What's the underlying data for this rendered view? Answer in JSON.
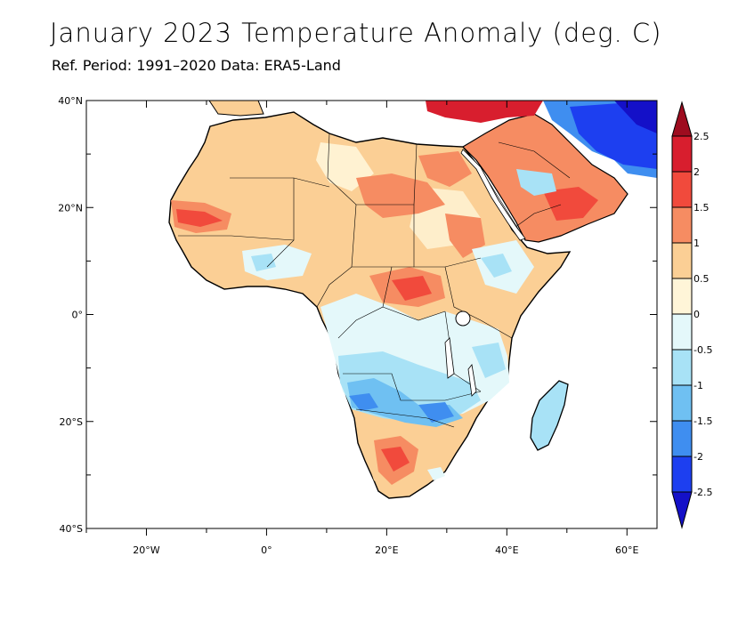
{
  "title": "January 2023 Temperature Anomaly (deg. C)",
  "subtitle": "Ref. Period: 1991–2020 Data: ERA5-Land",
  "map": {
    "lat_range": [
      -40,
      40
    ],
    "lon_range": [
      -30,
      65
    ],
    "lat_labels": [
      "40°N",
      "20°N",
      "0°",
      "20°S",
      "40°S"
    ],
    "lon_labels": [
      "20°W",
      "0°",
      "20°E",
      "40°E",
      "60°E"
    ],
    "ocean_color": "#ffffff",
    "coast_color": "#000000"
  },
  "colorbar": {
    "levels": [
      "2.5",
      "2",
      "1.5",
      "1",
      "0.5",
      "0",
      "-0.5",
      "-1",
      "-1.5",
      "-2",
      "-2.5"
    ],
    "colors": [
      "#9e0c1f",
      "#d81e2e",
      "#f14a3c",
      "#f68c62",
      "#fbcf95",
      "#fff5d8",
      "#e4f8fa",
      "#a8e2f6",
      "#6fc0f2",
      "#3f8ef0",
      "#1d3ff0",
      "#1410c8"
    ]
  }
}
